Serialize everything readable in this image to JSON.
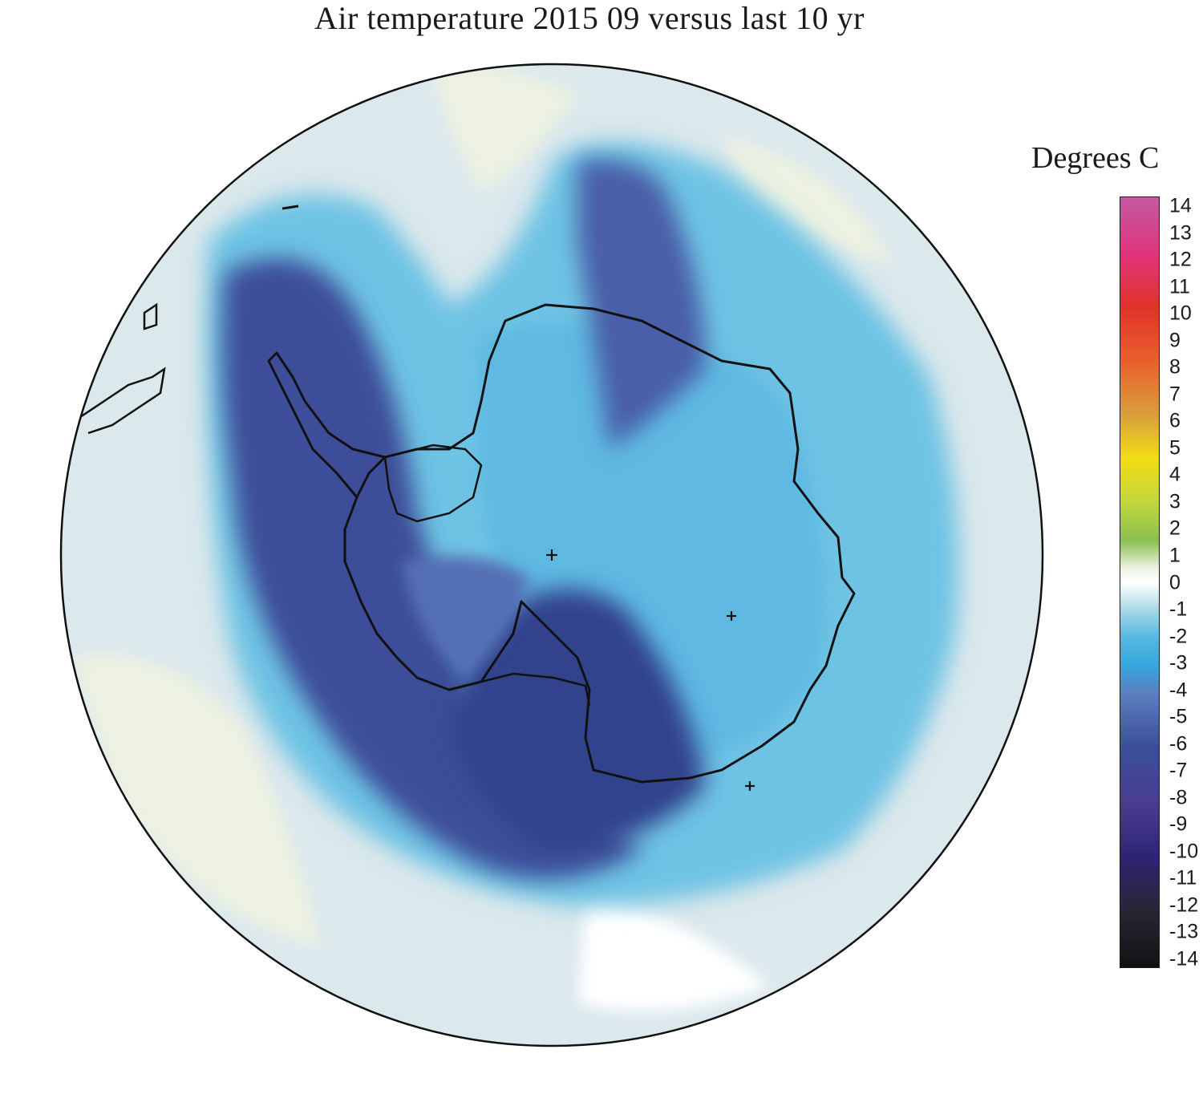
{
  "title": "Air temperature 2015 09 versus last 10 yr",
  "colorbar": {
    "title": "Degrees C",
    "min": -14,
    "max": 14,
    "labels": [
      "14",
      "13",
      "12",
      "11",
      "10",
      "9",
      "8",
      "7",
      "6",
      "5",
      "4",
      "3",
      "2",
      "1",
      "0",
      "-1",
      "-2",
      "-3",
      "-4",
      "-5",
      "-6",
      "-7",
      "-8",
      "-9",
      "-10",
      "-11",
      "-12",
      "-13",
      "-14"
    ],
    "stops": [
      {
        "value": 14,
        "color": "#c45aa0"
      },
      {
        "value": 12,
        "color": "#e0347d"
      },
      {
        "value": 10,
        "color": "#e0332a"
      },
      {
        "value": 8,
        "color": "#e9602b"
      },
      {
        "value": 6,
        "color": "#d9a23a"
      },
      {
        "value": 4.5,
        "color": "#f2dc16"
      },
      {
        "value": 3,
        "color": "#c5d83a"
      },
      {
        "value": 1.5,
        "color": "#8bbf52"
      },
      {
        "value": 0.5,
        "color": "#eef3e4"
      },
      {
        "value": 0,
        "color": "#ffffff"
      },
      {
        "value": -1,
        "color": "#a9d8e6"
      },
      {
        "value": -2,
        "color": "#58b8e0"
      },
      {
        "value": -3,
        "color": "#35a7dd"
      },
      {
        "value": -4,
        "color": "#5b7fbf"
      },
      {
        "value": -6,
        "color": "#3b4f98"
      },
      {
        "value": -8,
        "color": "#4a3d91"
      },
      {
        "value": -10,
        "color": "#2e2474"
      },
      {
        "value": -12,
        "color": "#2a2533"
      },
      {
        "value": -14,
        "color": "#111111"
      }
    ]
  },
  "map": {
    "projection": "south polar stereographic",
    "variable": "air temperature anomaly",
    "period": "2015 09",
    "baseline": "last 10 yr",
    "regions": [
      {
        "name": "ocean-light-anomaly",
        "value": -0.5,
        "color": "#dbe8ec"
      },
      {
        "name": "warm-patch",
        "value": 0.3,
        "color": "#eef2e2"
      },
      {
        "name": "moderate-cold",
        "value": -2,
        "color": "#58b8e0"
      },
      {
        "name": "east-antarctica",
        "value": -2.5,
        "color": "#6cc0e2"
      },
      {
        "name": "strong-cold",
        "value": -5,
        "color": "#3d4e99"
      },
      {
        "name": "peak-cold",
        "value": -6.5,
        "color": "#33428c"
      }
    ]
  }
}
